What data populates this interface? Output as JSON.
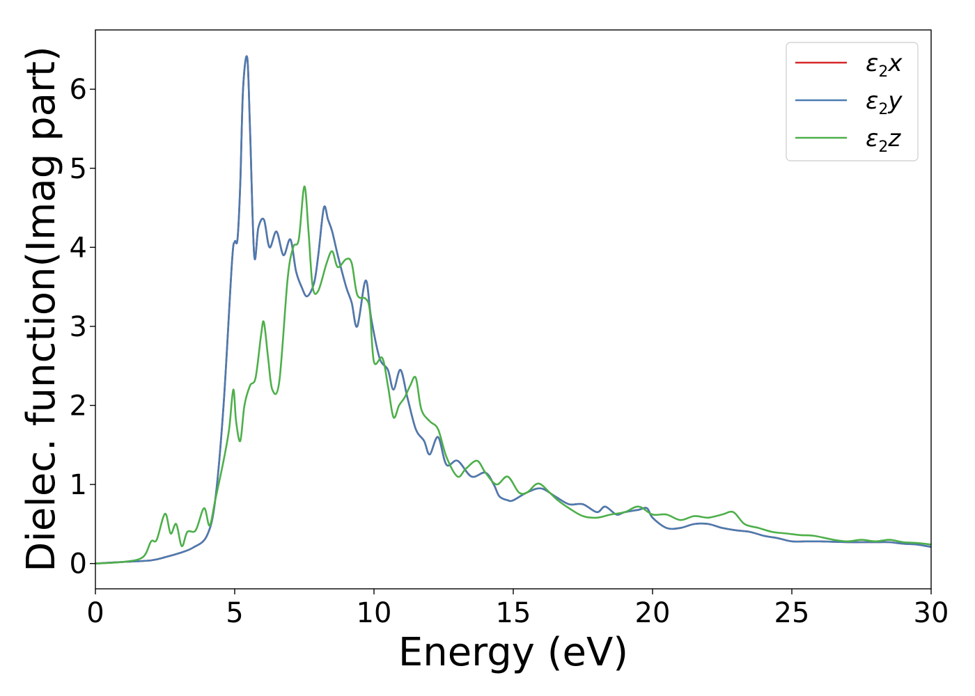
{
  "chart_data": {
    "type": "line",
    "title": "",
    "xlabel": "Energy (eV)",
    "ylabel": "Dielec. function(Imag part)",
    "xlim": [
      0,
      30
    ],
    "ylim": [
      -0.32,
      6.75
    ],
    "xticks": [
      0,
      5,
      10,
      15,
      20,
      25,
      30
    ],
    "yticks": [
      0,
      1,
      2,
      3,
      4,
      5,
      6
    ],
    "grid": false,
    "legend_position": "top-right",
    "series": [
      {
        "name": "x",
        "legend_symbol": "ε",
        "legend_subscript": "2",
        "color": "#d62728",
        "x": [
          0,
          1,
          2,
          2.5,
          3,
          3.5,
          4,
          4.3,
          4.6,
          4.9,
          5.0,
          5.1,
          5.2,
          5.3,
          5.45,
          5.55,
          5.7,
          5.85,
          6.05,
          6.25,
          6.5,
          6.75,
          7.0,
          7.2,
          7.4,
          7.6,
          7.85,
          8.0,
          8.2,
          8.35,
          8.5,
          8.7,
          9.0,
          9.2,
          9.4,
          9.7,
          9.9,
          10.2,
          10.5,
          10.7,
          10.95,
          11.2,
          11.5,
          11.8,
          12.0,
          12.3,
          12.6,
          13.0,
          13.5,
          14.0,
          14.3,
          14.5,
          14.8,
          15.0,
          15.5,
          16.0,
          16.5,
          17.0,
          17.5,
          18.0,
          18.3,
          18.7,
          19.0,
          19.5,
          19.8,
          20.0,
          20.5,
          21.0,
          21.5,
          22.0,
          22.5,
          23.0,
          23.5,
          24.0,
          24.5,
          25.0,
          25.5,
          26.0,
          27.0,
          27.5,
          28.0,
          28.5,
          29.0,
          29.5,
          30.0
        ],
        "y": [
          0,
          0.02,
          0.04,
          0.08,
          0.13,
          0.2,
          0.35,
          0.8,
          2.0,
          3.8,
          4.07,
          4.1,
          4.8,
          6.0,
          6.4,
          5.5,
          3.9,
          4.25,
          4.35,
          4.0,
          4.2,
          3.9,
          4.1,
          3.7,
          3.5,
          3.38,
          3.55,
          3.9,
          4.5,
          4.35,
          4.2,
          3.9,
          3.5,
          3.3,
          3.0,
          3.58,
          3.1,
          2.6,
          2.45,
          2.2,
          2.45,
          2.1,
          1.7,
          1.55,
          1.38,
          1.6,
          1.25,
          1.3,
          1.1,
          1.15,
          1.0,
          0.85,
          0.8,
          0.8,
          0.9,
          0.95,
          0.85,
          0.75,
          0.75,
          0.65,
          0.72,
          0.62,
          0.65,
          0.68,
          0.7,
          0.58,
          0.45,
          0.45,
          0.5,
          0.5,
          0.45,
          0.42,
          0.4,
          0.35,
          0.32,
          0.28,
          0.28,
          0.28,
          0.27,
          0.27,
          0.27,
          0.27,
          0.25,
          0.24,
          0.21
        ]
      },
      {
        "name": "y",
        "legend_symbol": "ε",
        "legend_subscript": "2",
        "color": "#4a7bb0",
        "x": [
          0,
          1,
          2,
          2.5,
          3,
          3.5,
          4,
          4.3,
          4.6,
          4.9,
          5.0,
          5.1,
          5.2,
          5.3,
          5.45,
          5.55,
          5.7,
          5.85,
          6.05,
          6.25,
          6.5,
          6.75,
          7.0,
          7.2,
          7.4,
          7.6,
          7.85,
          8.0,
          8.2,
          8.35,
          8.5,
          8.7,
          9.0,
          9.2,
          9.4,
          9.7,
          9.9,
          10.2,
          10.5,
          10.7,
          10.95,
          11.2,
          11.5,
          11.8,
          12.0,
          12.3,
          12.6,
          13.0,
          13.5,
          14.0,
          14.3,
          14.5,
          14.8,
          15.0,
          15.5,
          16.0,
          16.5,
          17.0,
          17.5,
          18.0,
          18.3,
          18.7,
          19.0,
          19.5,
          19.8,
          20.0,
          20.5,
          21.0,
          21.5,
          22.0,
          22.5,
          23.0,
          23.5,
          24.0,
          24.5,
          25.0,
          25.5,
          26.0,
          27.0,
          27.5,
          28.0,
          28.5,
          29.0,
          29.5,
          30.0
        ],
        "y": [
          0,
          0.02,
          0.04,
          0.08,
          0.13,
          0.2,
          0.35,
          0.8,
          2.0,
          3.8,
          4.07,
          4.1,
          4.8,
          6.0,
          6.4,
          5.5,
          3.9,
          4.25,
          4.35,
          4.0,
          4.2,
          3.9,
          4.1,
          3.7,
          3.5,
          3.38,
          3.55,
          3.9,
          4.5,
          4.35,
          4.2,
          3.9,
          3.5,
          3.3,
          3.0,
          3.58,
          3.1,
          2.6,
          2.45,
          2.2,
          2.45,
          2.1,
          1.7,
          1.55,
          1.38,
          1.6,
          1.25,
          1.3,
          1.1,
          1.15,
          1.0,
          0.85,
          0.8,
          0.8,
          0.9,
          0.95,
          0.85,
          0.75,
          0.75,
          0.65,
          0.72,
          0.62,
          0.65,
          0.68,
          0.7,
          0.58,
          0.45,
          0.45,
          0.5,
          0.5,
          0.45,
          0.42,
          0.4,
          0.35,
          0.32,
          0.28,
          0.28,
          0.28,
          0.27,
          0.27,
          0.27,
          0.27,
          0.25,
          0.24,
          0.21
        ]
      },
      {
        "name": "z",
        "legend_symbol": "ε",
        "legend_subscript": "2",
        "color": "#4daf4a",
        "x": [
          0,
          1,
          1.7,
          2.0,
          2.2,
          2.5,
          2.7,
          2.9,
          3.1,
          3.3,
          3.6,
          3.9,
          4.1,
          4.3,
          4.6,
          4.8,
          4.95,
          5.05,
          5.2,
          5.35,
          5.55,
          5.75,
          5.95,
          6.05,
          6.2,
          6.35,
          6.6,
          6.9,
          7.1,
          7.3,
          7.5,
          7.65,
          7.8,
          8.0,
          8.3,
          8.5,
          8.7,
          9.0,
          9.2,
          9.4,
          9.7,
          9.85,
          10.0,
          10.3,
          10.5,
          10.7,
          10.9,
          11.1,
          11.3,
          11.5,
          11.7,
          12.0,
          12.3,
          12.6,
          13.0,
          13.3,
          13.7,
          14.0,
          14.4,
          14.8,
          15.2,
          15.5,
          15.8,
          16.0,
          16.3,
          16.6,
          17.0,
          17.5,
          18.0,
          18.5,
          19.0,
          19.5,
          20.0,
          20.5,
          21.0,
          21.5,
          22.0,
          22.5,
          22.9,
          23.3,
          23.8,
          24.3,
          24.8,
          25.3,
          25.8,
          26.5,
          27.0,
          27.5,
          28.0,
          28.5,
          29.0,
          29.5,
          30.0
        ],
        "y": [
          0,
          0.02,
          0.08,
          0.28,
          0.3,
          0.63,
          0.38,
          0.5,
          0.22,
          0.4,
          0.42,
          0.7,
          0.48,
          0.8,
          1.3,
          1.7,
          2.2,
          1.8,
          1.55,
          2.0,
          2.25,
          2.35,
          2.9,
          3.05,
          2.6,
          2.2,
          2.3,
          3.6,
          4.0,
          4.1,
          4.77,
          4.2,
          3.5,
          3.45,
          3.8,
          3.95,
          3.75,
          3.85,
          3.8,
          3.4,
          3.35,
          3.2,
          2.55,
          2.6,
          2.25,
          1.85,
          2.0,
          2.1,
          2.25,
          2.35,
          1.95,
          1.8,
          1.7,
          1.35,
          1.1,
          1.2,
          1.3,
          1.15,
          1.0,
          1.1,
          0.9,
          0.9,
          1.0,
          1.0,
          0.9,
          0.8,
          0.7,
          0.6,
          0.58,
          0.62,
          0.65,
          0.72,
          0.62,
          0.62,
          0.55,
          0.6,
          0.58,
          0.62,
          0.65,
          0.5,
          0.45,
          0.4,
          0.38,
          0.36,
          0.35,
          0.3,
          0.28,
          0.3,
          0.28,
          0.3,
          0.27,
          0.26,
          0.24
        ]
      }
    ]
  }
}
